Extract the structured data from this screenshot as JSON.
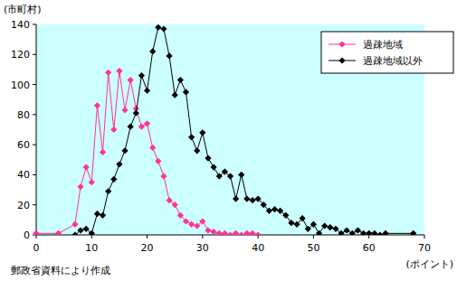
{
  "chart_data": {
    "type": "line",
    "y_label": "(市町村)",
    "x_label": "(ポイント)",
    "source": "郵政省資料により作成",
    "xlim": [
      0,
      70
    ],
    "xticks": [
      0,
      10,
      20,
      30,
      40,
      50,
      60,
      70
    ],
    "ylim": [
      0,
      140
    ],
    "yticks": [
      0,
      20,
      40,
      60,
      80,
      100,
      120,
      140
    ],
    "grid": false,
    "legend": "upper right",
    "series": [
      {
        "name": "過疎地域",
        "color": "#ff3399",
        "marker": "diamond",
        "x": [
          0,
          4,
          7,
          8,
          9,
          10,
          11,
          12,
          13,
          14,
          15,
          16,
          17,
          18,
          19,
          20,
          21,
          22,
          23,
          24,
          25,
          26,
          27,
          28,
          29,
          30,
          31,
          32,
          33,
          34,
          35,
          36,
          37,
          38,
          39,
          40
        ],
        "values": [
          1,
          1,
          7,
          32,
          45,
          35,
          86,
          55,
          108,
          70,
          109,
          83,
          103,
          84,
          72,
          74,
          58,
          49,
          39,
          23,
          20,
          13,
          9,
          7,
          6,
          9,
          3,
          2,
          1,
          1,
          0,
          1,
          0,
          1,
          1,
          0
        ]
      },
      {
        "name": "過疎地域以外",
        "color": "#000000",
        "marker": "diamond",
        "x": [
          7,
          8,
          9,
          10,
          11,
          12,
          13,
          14,
          15,
          16,
          17,
          18,
          19,
          20,
          21,
          22,
          23,
          24,
          25,
          26,
          27,
          28,
          29,
          30,
          31,
          32,
          33,
          34,
          35,
          36,
          37,
          38,
          39,
          40,
          41,
          42,
          43,
          44,
          45,
          46,
          47,
          48,
          49,
          50,
          51,
          52,
          53,
          54,
          55,
          56,
          57,
          58,
          59,
          60,
          61,
          62,
          63,
          68
        ],
        "values": [
          0,
          3,
          4,
          1,
          14,
          13,
          29,
          37,
          47,
          56,
          72,
          81,
          106,
          96,
          122,
          138,
          137,
          119,
          93,
          103,
          95,
          65,
          56,
          68,
          51,
          45,
          39,
          42,
          39,
          24,
          40,
          24,
          23,
          24,
          20,
          16,
          17,
          16,
          13,
          8,
          7,
          11,
          4,
          7,
          1,
          6,
          5,
          4,
          1,
          3,
          1,
          3,
          1,
          1,
          1,
          0,
          1,
          1
        ]
      }
    ]
  }
}
